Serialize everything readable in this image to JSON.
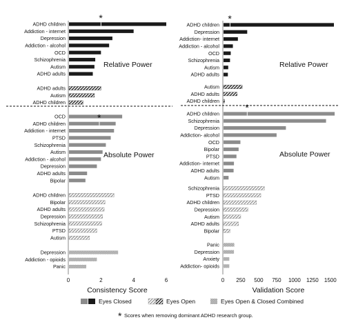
{
  "colors": {
    "closed_dark": "#1a1a1a",
    "closed_grey": "#8c8c8c",
    "open_hatch": "#333333",
    "combined_fill": "#bdbdbd"
  },
  "chart_data": [
    {
      "type": "bar",
      "orientation": "horizontal",
      "xlabel": "Consistency Score",
      "xlim": [
        0,
        6
      ],
      "xticks": [
        "0",
        "2",
        "4",
        "6"
      ],
      "sections": [
        {
          "label": "Relative Power",
          "condition": "Eyes Closed",
          "style": "dark",
          "categories": [
            "ADHD children",
            "Addiction - internet",
            "Depression",
            "Addiction - alcohol",
            "OCD",
            "Schizophrenia",
            "Autism",
            "ADHD adults"
          ],
          "values": [
            6.0,
            4.0,
            2.7,
            2.5,
            2.0,
            1.65,
            1.6,
            1.5
          ],
          "marker_value": 2.0,
          "marker_category": "ADHD children"
        },
        {
          "label": "",
          "condition": "Eyes Open",
          "style": "hatch",
          "categories": [
            "ADHD adults",
            "Autism",
            "ADHD children"
          ],
          "values": [
            2.0,
            1.6,
            0.9
          ]
        },
        {
          "label": "Absolute Power",
          "condition": "Eyes Closed",
          "style": "grey",
          "categories": [
            "OCD",
            "ADHD children",
            "Addiction - internet",
            "PTSD",
            "Schizophrenia",
            "Autism",
            "Addiction - alcohol",
            "Depression",
            "ADHD adults",
            "Bipolar"
          ],
          "values": [
            3.3,
            2.9,
            2.8,
            2.6,
            2.3,
            2.1,
            2.0,
            1.75,
            1.15,
            1.05
          ],
          "marker_value": 1.9,
          "marker_category": "ADHD children"
        },
        {
          "label": "",
          "condition": "Eyes Open",
          "style": "hatch-light",
          "categories": [
            "ADHD children",
            "Bipolar",
            "ADHD adults",
            "Depression",
            "Schizophrenia",
            "PTSD",
            "Autism"
          ],
          "values": [
            2.8,
            2.25,
            2.2,
            2.1,
            2.05,
            1.75,
            1.3
          ]
        },
        {
          "label": "",
          "condition": "Eyes Open & Closed Combined",
          "style": "dots",
          "categories": [
            "Depression",
            "Addiction - opioids",
            "Panic"
          ],
          "values": [
            3.05,
            1.75,
            1.1
          ]
        }
      ]
    },
    {
      "type": "bar",
      "orientation": "horizontal",
      "xlabel": "Validation Score",
      "xlim": [
        0,
        1550
      ],
      "xticks": [
        "0",
        "250",
        "500",
        "750",
        "1000",
        "1250",
        "1500"
      ],
      "sections": [
        {
          "label": "Relative Power",
          "condition": "Eyes Closed",
          "style": "dark",
          "categories": [
            "ADHD children",
            "Depression",
            "Addiction- internet",
            "Addiction - alcohol",
            "OCD",
            "Schizophrenia",
            "Autism",
            "ADHD adults"
          ],
          "values": [
            1550,
            340,
            210,
            140,
            110,
            100,
            75,
            70
          ],
          "marker_value": 100,
          "marker_category": "ADHD children"
        },
        {
          "label": "",
          "condition": "Eyes Open",
          "style": "hatch",
          "categories": [
            "Autism",
            "ADHD adults",
            "ADHD children"
          ],
          "values": [
            270,
            200,
            25
          ]
        },
        {
          "label": "Absolute Power",
          "condition": "Eyes Closed",
          "style": "grey",
          "categories": [
            "ADHD children",
            "Schizophrenia",
            "Depression",
            "Addiction- alcohol",
            "OCD",
            "Bipolar",
            "PTSD",
            "Addiction- internet",
            "ADHD adults",
            "Autism"
          ],
          "values": [
            1560,
            1440,
            880,
            750,
            245,
            220,
            190,
            155,
            150,
            80
          ],
          "marker_value": 340,
          "marker_category": "ADHD children"
        },
        {
          "label": "",
          "condition": "Eyes Open",
          "style": "hatch-light",
          "categories": [
            "Schizophrenia",
            "PTSD",
            "ADHD children",
            "Depression",
            "Autism",
            "ADHD adults",
            "Bipolar"
          ],
          "values": [
            580,
            530,
            470,
            350,
            250,
            220,
            100
          ]
        },
        {
          "label": "",
          "condition": "Eyes Open & Closed Combined",
          "style": "dots",
          "categories": [
            "Panic",
            "Depression",
            "Anxiety",
            "Addiction- opioids"
          ],
          "values": [
            160,
            155,
            90,
            90
          ]
        }
      ]
    }
  ],
  "legend": {
    "eyes_closed": "Eyes Closed",
    "eyes_open": "Eyes Open",
    "combined": "Eyes Open & Closed Combined"
  },
  "footnote": "Scores when removing dominant ADHD research group.",
  "marker_symbol": "*"
}
